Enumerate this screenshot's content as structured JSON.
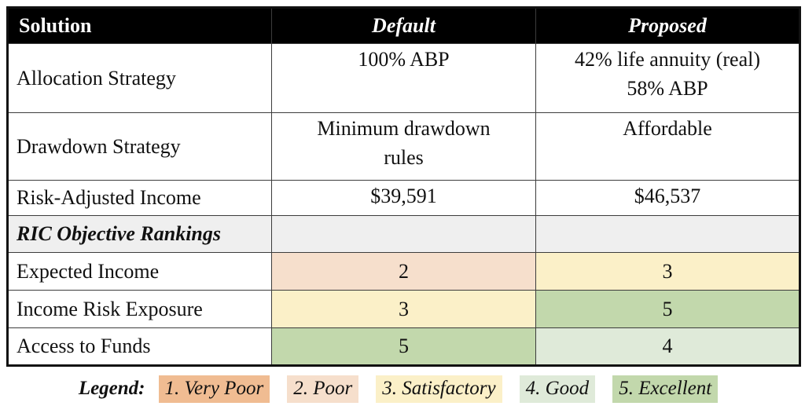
{
  "table": {
    "headers": [
      "Solution",
      "Default",
      "Proposed"
    ],
    "info_rows": [
      {
        "label": "Allocation Strategy",
        "default": "100% ABP",
        "proposed": "42% life annuity (real)\n58% ABP"
      },
      {
        "label": "Drawdown Strategy",
        "default": "Minimum drawdown\nrules",
        "proposed": "Affordable"
      },
      {
        "label": "Risk-Adjusted Income",
        "default": "$39,591",
        "proposed": "$46,537"
      }
    ],
    "section_row": {
      "label": "RIC Objective Rankings"
    },
    "ranking_rows": [
      {
        "label": "Expected Income",
        "default": {
          "value": "2",
          "rank": 2
        },
        "proposed": {
          "value": "3",
          "rank": 3
        }
      },
      {
        "label": "Income Risk Exposure",
        "default": {
          "value": "3",
          "rank": 3
        },
        "proposed": {
          "value": "5",
          "rank": 5
        }
      },
      {
        "label": "Access to Funds",
        "default": {
          "value": "5",
          "rank": 5
        },
        "proposed": {
          "value": "4",
          "rank": 4
        }
      }
    ]
  },
  "legend": {
    "title": "Legend:",
    "items": [
      {
        "text": "1. Very Poor",
        "rank": 1
      },
      {
        "text": "2. Poor",
        "rank": 2
      },
      {
        "text": "3. Satisfactory",
        "rank": 3
      },
      {
        "text": "4. Good",
        "rank": 4
      },
      {
        "text": "5. Excellent",
        "rank": 5
      }
    ]
  },
  "colors": {
    "rank1": "#f0bc92",
    "rank2": "#f6dfcc",
    "rank3": "#fbf0c8",
    "rank4": "#dfead9",
    "rank5": "#c2d8ac",
    "header_bg": "#000000",
    "header_text": "#ffffff",
    "section_bg": "#efefef",
    "border": "#111111"
  },
  "chart_data": {
    "type": "table",
    "title": "Default vs Proposed retirement solution comparison",
    "columns": [
      "Solution",
      "Default",
      "Proposed"
    ],
    "rows": [
      [
        "Allocation Strategy",
        "100% ABP",
        "42% life annuity (real) 58% ABP"
      ],
      [
        "Drawdown Strategy",
        "Minimum drawdown rules",
        "Affordable"
      ],
      [
        "Risk-Adjusted Income",
        "$39,591",
        "$46,537"
      ],
      [
        "RIC Objective Rankings",
        "",
        ""
      ],
      [
        "Expected Income",
        "2",
        "3"
      ],
      [
        "Income Risk Exposure",
        "3",
        "5"
      ],
      [
        "Access to Funds",
        "5",
        "4"
      ]
    ],
    "rankings": {
      "Expected Income": {
        "Default": 2,
        "Proposed": 3
      },
      "Income Risk Exposure": {
        "Default": 3,
        "Proposed": 5
      },
      "Access to Funds": {
        "Default": 5,
        "Proposed": 4
      }
    },
    "legend_scale": [
      "1. Very Poor",
      "2. Poor",
      "3. Satisfactory",
      "4. Good",
      "5. Excellent"
    ],
    "rank_color_scale": {
      "1": "#f0bc92",
      "2": "#f6dfcc",
      "3": "#fbf0c8",
      "4": "#dfead9",
      "5": "#c2d8ac"
    }
  }
}
